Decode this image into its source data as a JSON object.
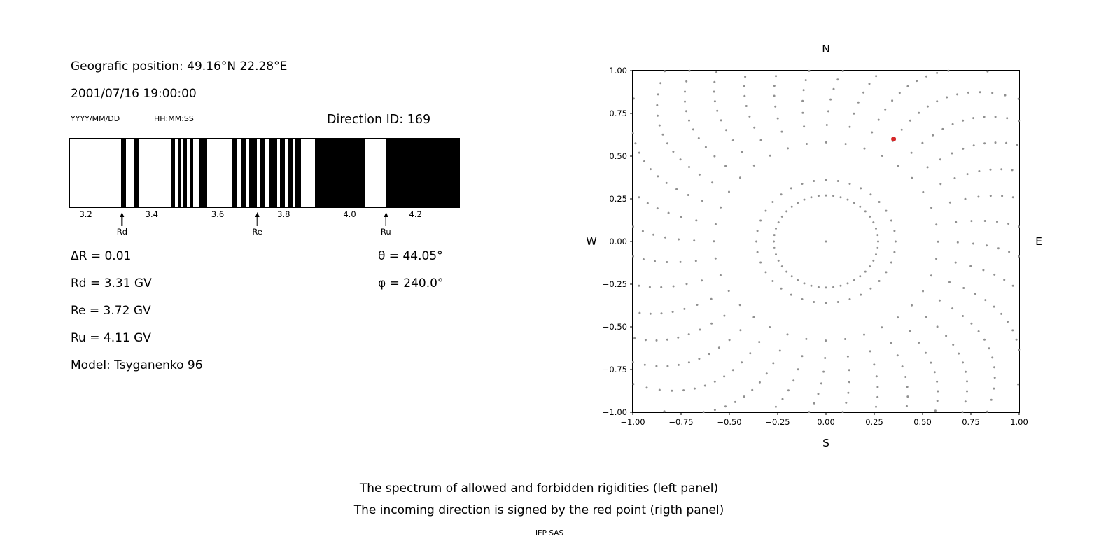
{
  "header": {
    "geo_position": "Geografic position: 49.16°N 22.28°E",
    "datetime": "2001/07/16 19:00:00",
    "date_format_label": "YYYY/MM/DD",
    "time_format_label": "HH:MM:SS",
    "direction_id_label": "Direction ID: 169"
  },
  "left_panel": {
    "delta_r": "ΔR = 0.01",
    "rd": "Rd = 3.31 GV",
    "re": "Re = 3.72 GV",
    "ru": "Ru = 4.11 GV",
    "model": "Model: Tsyganenko 96",
    "theta": "θ = 44.05°",
    "phi": "φ = 240.0°"
  },
  "captions": {
    "line1": "The spectrum of allowed and forbidden rigidities (left panel)",
    "line2": "The incoming direction is signed by the red point (rigth panel)",
    "credit": "IEP SAS"
  },
  "chart_data": [
    {
      "type": "bar",
      "subtype": "rigidity-barcode",
      "description": "Spectrum of allowed (white) and forbidden (black) rigidities",
      "xlim": [
        3.15,
        4.33
      ],
      "xticks": [
        3.2,
        3.4,
        3.6,
        3.8,
        4.0,
        4.2
      ],
      "band_color": "#000000",
      "forbidden_bands_gv": [
        [
          3.305,
          3.32
        ],
        [
          3.345,
          3.36
        ],
        [
          3.455,
          3.468
        ],
        [
          3.476,
          3.488
        ],
        [
          3.494,
          3.505
        ],
        [
          3.512,
          3.523
        ],
        [
          3.541,
          3.566
        ],
        [
          3.64,
          3.656
        ],
        [
          3.668,
          3.685
        ],
        [
          3.694,
          3.716
        ],
        [
          3.726,
          3.742
        ],
        [
          3.752,
          3.778
        ],
        [
          3.786,
          3.802
        ],
        [
          3.81,
          3.826
        ],
        [
          3.834,
          3.85
        ],
        [
          3.893,
          4.046
        ],
        [
          4.11,
          4.33
        ]
      ],
      "markers": [
        {
          "label": "Rd",
          "value": 3.31
        },
        {
          "label": "Re",
          "value": 3.72
        },
        {
          "label": "Ru",
          "value": 4.11
        }
      ]
    },
    {
      "type": "scatter",
      "subtype": "asymptotic-directions",
      "xlim": [
        -1.0,
        1.0
      ],
      "ylim": [
        -1.0,
        1.0
      ],
      "xticks": [
        -1.0,
        -0.75,
        -0.5,
        -0.25,
        0.0,
        0.25,
        0.5,
        0.75,
        1.0
      ],
      "yticks": [
        -1.0,
        -0.75,
        -0.5,
        -0.25,
        0.0,
        0.25,
        0.5,
        0.75,
        1.0
      ],
      "compass": {
        "top": "N",
        "bottom": "S",
        "left": "W",
        "right": "E"
      },
      "dot_color": "#909090",
      "dot_radius_px": 1.5,
      "red_point": {
        "x": 0.35,
        "y": 0.6,
        "color": "#d62728",
        "radius_px": 3.5
      },
      "pattern": {
        "center_dot": true,
        "ring": {
          "radius": 0.27,
          "count": 44
        },
        "spokes": {
          "count": 36,
          "points_per_spoke": 15,
          "r_start": 0.36,
          "r_end": 1.3,
          "density_exp": 0.55,
          "twist_rad": -0.35
        }
      }
    }
  ]
}
